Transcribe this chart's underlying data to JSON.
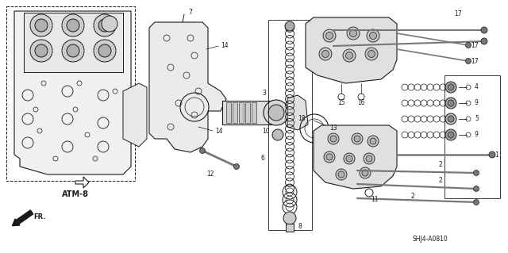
{
  "bg_color": "#f5f5f0",
  "line_color": "#1a1a1a",
  "gray": "#777777",
  "light_gray": "#bbbbbb",
  "dark_gray": "#444444",
  "figsize": [
    6.4,
    3.19
  ],
  "dpi": 100,
  "atm_label": "ATM-8",
  "fr_label": "FR.",
  "ref_label": "SHJ4-A0810"
}
